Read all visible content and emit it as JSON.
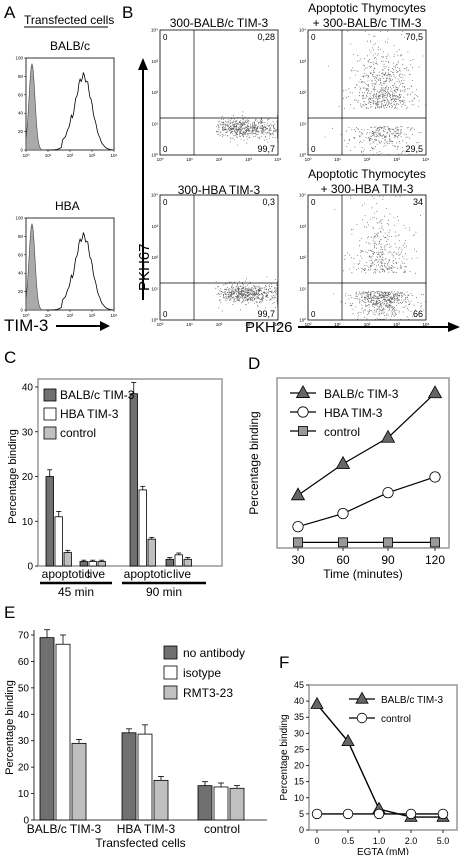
{
  "panels": {
    "A": {
      "letter": "A",
      "header": "Transfected cells",
      "plots": [
        {
          "label": "BALB/c"
        },
        {
          "label": "HBA"
        }
      ],
      "yticks": [
        "100",
        "80",
        "60",
        "40",
        "20",
        "0"
      ],
      "xticks": [
        "10⁰",
        "10¹",
        "10²",
        "10³",
        "10⁴"
      ],
      "xlabel": "TIM-3"
    },
    "B": {
      "letter": "B",
      "ylabel": "PKH67",
      "xlabel": "PKH26",
      "plots": [
        {
          "title": "300-BALB/c TIM-3",
          "ul": "0",
          "ur": "0,28",
          "ll": "0",
          "lr": "99,7"
        },
        {
          "title": "Apoptotic Thymocytes\n+ 300-BALB/c TIM-3",
          "ul": "0",
          "ur": "70,5",
          "ll": "0",
          "lr": "29,5"
        },
        {
          "title": "300-HBA TIM-3",
          "ul": "0",
          "ur": "0,3",
          "ll": "0",
          "lr": "99,7"
        },
        {
          "title": "Apoptotic Thymocytes\n+ 300-HBA TIM-3",
          "ul": "0",
          "ur": "34",
          "ll": "0",
          "lr": "66"
        }
      ],
      "ticks": [
        "10⁰",
        "10¹",
        "10²",
        "10³",
        "10⁴"
      ]
    },
    "C": {
      "letter": "C"
    },
    "D": {
      "letter": "D"
    },
    "E": {
      "letter": "E"
    },
    "F": {
      "letter": "F"
    }
  },
  "chart_data": [
    {
      "id": "C",
      "type": "bar",
      "ylabel": "Percentage binding",
      "ylim": [
        0,
        40
      ],
      "yticks": [
        0,
        10,
        20,
        30,
        40
      ],
      "categories": [
        "apoptotic",
        "live",
        "apoptotic",
        "live"
      ],
      "groups": [
        "45 min",
        "90 min"
      ],
      "series": [
        {
          "name": "BALB/c TIM-3",
          "color": "#707070",
          "values": [
            20,
            1,
            38.5,
            1.5
          ],
          "errors": [
            1.5,
            0.3,
            2.5,
            0.4
          ]
        },
        {
          "name": "HBA TIM-3",
          "color": "#ffffff",
          "values": [
            11,
            1,
            17,
            2.5
          ],
          "errors": [
            1.2,
            0.3,
            0.8,
            0.4
          ]
        },
        {
          "name": "control",
          "color": "#c0c0c0",
          "values": [
            3,
            1,
            6,
            1.5
          ],
          "errors": [
            0.5,
            0.3,
            0.4,
            0.4
          ]
        }
      ],
      "legend": "top-left"
    },
    {
      "id": "D",
      "type": "line",
      "ylabel": "Percentage binding",
      "xlabel": "Time (minutes)",
      "x": [
        30,
        60,
        90,
        120
      ],
      "xticks": [
        30,
        60,
        90,
        120
      ],
      "ylim": [
        0,
        60
      ],
      "series": [
        {
          "name": "BALB/c TIM-3",
          "marker": "triangle",
          "values": [
            19,
            31,
            41,
            58
          ]
        },
        {
          "name": "HBA TIM-3",
          "marker": "circle",
          "values": [
            7,
            12,
            20,
            26
          ]
        },
        {
          "name": "control",
          "marker": "square",
          "values": [
            1,
            1,
            1,
            1
          ]
        }
      ],
      "legend": "top-left"
    },
    {
      "id": "E",
      "type": "bar",
      "ylabel": "Percentage binding",
      "xlabel": "Transfected cells",
      "ylim": [
        0,
        70
      ],
      "yticks": [
        0,
        10,
        20,
        30,
        40,
        50,
        60,
        70
      ],
      "categories": [
        "BALB/c TIM-3",
        "HBA TIM-3",
        "control"
      ],
      "series": [
        {
          "name": "no antibody",
          "color": "#707070",
          "values": [
            69,
            33,
            13
          ],
          "errors": [
            3,
            1.5,
            1.5
          ]
        },
        {
          "name": "isotype",
          "color": "#ffffff",
          "values": [
            66.5,
            32.5,
            12.5
          ],
          "errors": [
            3.5,
            3.5,
            1.5
          ]
        },
        {
          "name": "RMT3-23",
          "color": "#c0c0c0",
          "values": [
            29,
            15,
            12
          ],
          "errors": [
            1.5,
            1.5,
            1
          ]
        }
      ],
      "legend": "top-right"
    },
    {
      "id": "F",
      "type": "line",
      "ylabel": "Percentage binding",
      "xlabel": "EGTA (mM)",
      "x": [
        0,
        0.5,
        1.0,
        2.0,
        5.0
      ],
      "xticks": [
        "0",
        "0.5",
        "1.0",
        "2.0",
        "5.0"
      ],
      "ylim": [
        0,
        45
      ],
      "yticks": [
        0,
        5,
        10,
        15,
        20,
        25,
        30,
        35,
        40,
        45
      ],
      "series": [
        {
          "name": "BALB/c TIM-3",
          "marker": "triangle",
          "values": [
            39,
            27.5,
            6.5,
            4,
            4
          ]
        },
        {
          "name": "control",
          "marker": "circle",
          "values": [
            5,
            5,
            5,
            5,
            5
          ]
        }
      ],
      "legend": "top-right"
    }
  ]
}
